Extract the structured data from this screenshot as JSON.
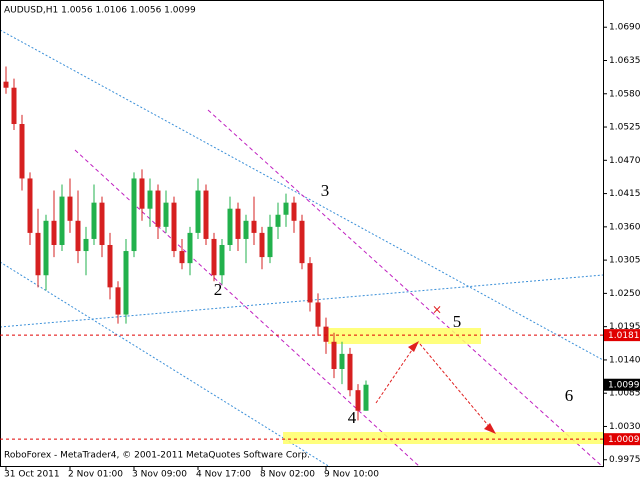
{
  "chart_data": {
    "type": "candlestick",
    "title": "AUDUSD,H1  1.0056 1.0106 1.0056 1.0099",
    "footer": "RoboForex - MetaTrader4, © 2001-2011 MetaQuotes Software Corp.",
    "categories": [
      "31 Oct 2011",
      null,
      null,
      null,
      null,
      null,
      null,
      null,
      "2 Nov 01:00",
      null,
      null,
      null,
      null,
      null,
      null,
      null,
      "3 Nov 09:00",
      null,
      null,
      null,
      null,
      null,
      null,
      null,
      "4 Nov 17:00",
      null,
      null,
      null,
      null,
      null,
      null,
      null,
      "8 Nov 02:00",
      null,
      null,
      null,
      null,
      null,
      null,
      null,
      "9 Nov 10:00",
      null,
      null,
      null,
      null,
      null
    ],
    "open": [
      1.06,
      1.059,
      1.053,
      1.044,
      1.035,
      1.028,
      1.037,
      1.033,
      1.041,
      1.037,
      1.032,
      1.034,
      1.04,
      1.033,
      1.026,
      1.0215,
      1.032,
      1.044,
      1.039,
      1.042,
      1.036,
      1.04,
      1.032,
      1.03,
      1.035,
      1.042,
      1.034,
      1.028,
      1.033,
      1.039,
      1.034,
      1.037,
      1.035,
      1.031,
      1.036,
      1.038,
      1.04,
      1.037,
      1.03,
      1.0235,
      1.0195,
      1.017,
      1.0125,
      1.015,
      1.009,
      1.0056
    ],
    "high": [
      1.0625,
      1.0605,
      1.0545,
      1.045,
      1.039,
      1.038,
      1.042,
      1.043,
      1.044,
      1.042,
      1.036,
      1.043,
      1.041,
      1.035,
      1.027,
      1.034,
      1.045,
      1.0455,
      1.044,
      1.043,
      1.042,
      1.041,
      1.034,
      1.036,
      1.044,
      1.043,
      1.035,
      1.034,
      1.041,
      1.04,
      1.038,
      1.041,
      1.036,
      1.038,
      1.04,
      1.0415,
      1.041,
      1.038,
      1.031,
      1.025,
      1.021,
      1.0185,
      1.017,
      1.016,
      1.01,
      1.0106
    ],
    "low": [
      1.058,
      1.052,
      1.042,
      1.033,
      1.026,
      1.0255,
      1.031,
      1.032,
      1.035,
      1.03,
      1.028,
      1.033,
      1.031,
      1.024,
      1.02,
      1.02,
      1.031,
      1.037,
      1.036,
      1.034,
      1.035,
      1.031,
      1.029,
      1.028,
      1.034,
      1.033,
      1.027,
      1.0265,
      1.032,
      1.032,
      1.03,
      1.033,
      1.029,
      1.03,
      1.034,
      1.036,
      1.035,
      1.029,
      1.022,
      1.018,
      1.015,
      1.011,
      1.01,
      1.008,
      1.004,
      1.0056
    ],
    "close": [
      1.059,
      1.053,
      1.044,
      1.035,
      1.028,
      1.037,
      1.033,
      1.041,
      1.037,
      1.032,
      1.034,
      1.04,
      1.033,
      1.026,
      1.0215,
      1.032,
      1.044,
      1.039,
      1.042,
      1.036,
      1.04,
      1.032,
      1.03,
      1.035,
      1.042,
      1.034,
      1.028,
      1.033,
      1.039,
      1.034,
      1.037,
      1.035,
      1.031,
      1.036,
      1.038,
      1.04,
      1.037,
      1.03,
      1.0235,
      1.0195,
      1.017,
      1.0125,
      1.015,
      1.009,
      1.0056,
      1.0099
    ],
    "up_color": "#22b14c",
    "down_color": "#d62020",
    "ylim": [
      0.9963,
      1.0735
    ],
    "yticks": [
      {
        "value": 1.069,
        "label": "1.0690"
      },
      1.0635,
      {
        "value": 1.058,
        "label": "1.0580"
      },
      1.0525,
      {
        "value": 1.047,
        "label": "1.0470"
      },
      1.0415,
      {
        "value": 1.036,
        "label": "1.0360"
      },
      1.0305,
      {
        "value": 1.025,
        "label": "1.0250"
      },
      1.0195,
      {
        "value": 1.014,
        "label": "1.0140"
      },
      1.0085,
      {
        "value": 1.003,
        "label": "1.0030"
      },
      0.9975
    ],
    "levels": [
      {
        "value": 1.0181,
        "color": "#e00000",
        "line": true
      },
      {
        "value": 1.0099,
        "color": "#000000",
        "line": false
      },
      {
        "value": 1.0009,
        "color": "#e00000",
        "line": true
      }
    ],
    "annotations": [
      "2",
      "3",
      "4",
      "5",
      "6"
    ]
  }
}
